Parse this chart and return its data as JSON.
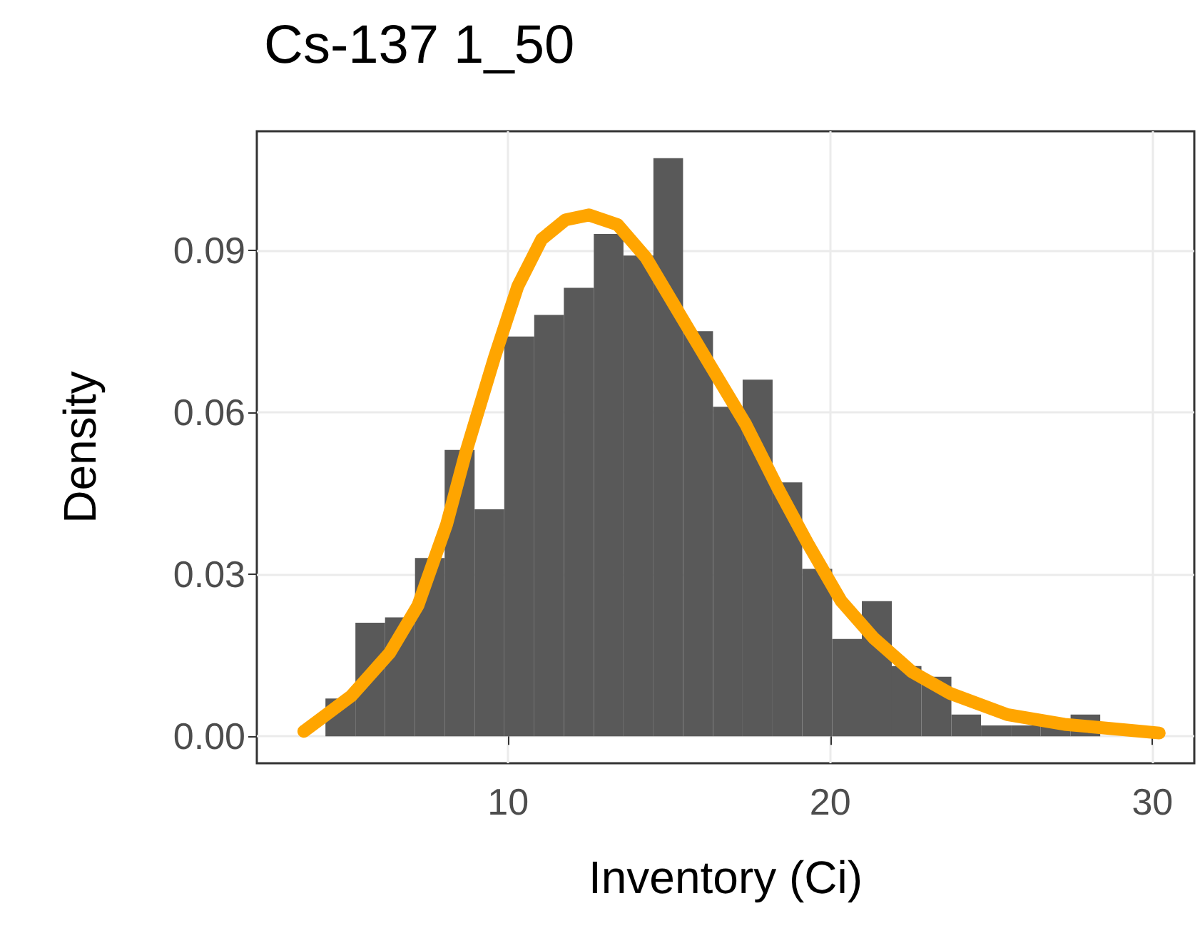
{
  "chart_data": {
    "type": "histogram",
    "title": "Cs-137 1_50",
    "xlabel": "Inventory (Ci)",
    "ylabel": "Density",
    "bins": [
      4.33,
      5.26,
      6.18,
      7.11,
      8.03,
      8.96,
      9.88,
      10.81,
      11.73,
      12.66,
      13.58,
      14.51,
      15.43,
      16.36,
      17.28,
      18.21,
      19.13,
      20.06,
      20.98,
      21.91,
      22.83,
      23.76,
      24.68,
      25.61,
      26.53,
      27.46,
      28.38
    ],
    "series": [
      {
        "color": "#595959",
        "values": [
          0.007,
          0.021,
          0.022,
          0.033,
          0.053,
          0.042,
          0.074,
          0.078,
          0.083,
          0.093,
          0.089,
          0.107,
          0.075,
          0.061,
          0.066,
          0.047,
          0.031,
          0.018,
          0.025,
          0.013,
          0.011,
          0.004,
          0.002,
          0.002,
          0.002,
          0.004
        ]
      },
      {
        "type": "line",
        "color": "#ffa500",
        "x": [
          3.66,
          5.14,
          6.32,
          7.2,
          8.09,
          8.68,
          9.57,
          10.3,
          11.04,
          11.78,
          12.51,
          13.4,
          14.28,
          15.17,
          16.05,
          17.38,
          18.42,
          19.3,
          20.33,
          21.36,
          22.54,
          23.73,
          25.5,
          27.27,
          30.21
        ],
        "values": [
          0.0009,
          0.0075,
          0.0154,
          0.0242,
          0.0392,
          0.0524,
          0.07,
          0.0833,
          0.092,
          0.0956,
          0.0965,
          0.0947,
          0.0886,
          0.0797,
          0.0709,
          0.0577,
          0.0454,
          0.0357,
          0.0251,
          0.0181,
          0.0119,
          0.0079,
          0.004,
          0.0022,
          0.0006
        ]
      }
    ],
    "xlim": [
      2.2,
      31.3
    ],
    "ylim": [
      -0.005,
      0.112
    ],
    "xticks": [
      10,
      20,
      30
    ],
    "yticks": [
      {
        "value": 0,
        "label": "0.00"
      },
      {
        "value": 0.03,
        "label": "0.03"
      },
      {
        "value": 0.06,
        "label": "0.06"
      },
      {
        "value": 0.09,
        "label": "0.09"
      }
    ],
    "grid": true,
    "line_style": "solid"
  }
}
